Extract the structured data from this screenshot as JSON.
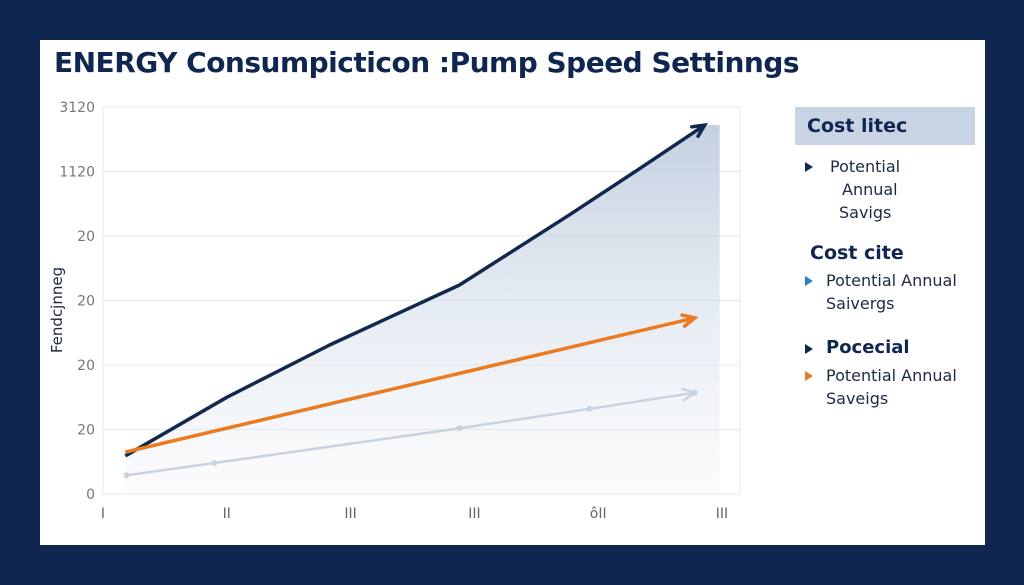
{
  "chart_data": {
    "type": "line",
    "title": "ENERGY Consumpicticon :Pump Speed Settinngs",
    "ylabel": "Fendcjnneg",
    "xlabel": "",
    "y_tick_labels": [
      "0",
      "20",
      "20",
      "20",
      "20",
      "1120",
      "3120"
    ],
    "x_tick_labels": [
      "I",
      "II",
      "III",
      "III",
      "ôII",
      "III"
    ],
    "ylim": [
      0,
      6
    ],
    "xlim": [
      0,
      5
    ],
    "grid": true,
    "series": [
      {
        "color": "#13284f",
        "x": [
          0.18,
          1.0,
          1.83,
          2.88,
          3.77,
          4.3,
          4.86
        ],
        "y": [
          0.59,
          1.5,
          2.31,
          3.24,
          4.33,
          5.0,
          5.72
        ],
        "fill": true,
        "arrow": true
      },
      {
        "color": "#ec7a1e",
        "x": [
          0.18,
          4.78
        ],
        "y": [
          0.65,
          2.73
        ],
        "arrow": true
      },
      {
        "color": "#c9d3de",
        "x": [
          0.19,
          0.9,
          2.88,
          3.93,
          4.78
        ],
        "y": [
          0.29,
          0.48,
          1.02,
          1.32,
          1.57
        ],
        "markers": true,
        "arrow": true
      }
    ],
    "legend_placement": "right"
  },
  "legend": {
    "header": "Cost litec",
    "item1": [
      "Potential",
      "Annual",
      "Savigs"
    ],
    "heading2": "Cost cite",
    "item2": [
      "Potential Annual",
      "Saivergs"
    ],
    "item3_label": "Pocecial",
    "item4": [
      "Potential Annual",
      "Saveigs"
    ],
    "colors": {
      "navy": "#0f2650",
      "blue": "#2f7fc1",
      "orange": "#ec7a1e",
      "header_bg": "#c8d4e3"
    }
  }
}
